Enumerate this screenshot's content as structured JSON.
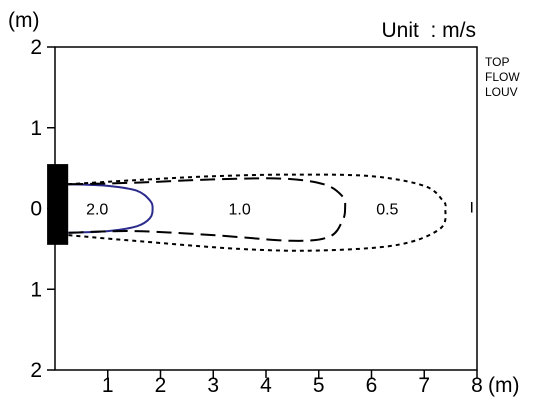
{
  "chart_data": {
    "type": "line",
    "title": "",
    "unit_label": "Unit  : m/s",
    "side_note": [
      "TOP",
      "FLOW",
      "LOUV"
    ],
    "xlabel": "(m)",
    "ylabel": "(m)",
    "xlim": [
      0,
      8
    ],
    "ylim": [
      -2,
      2
    ],
    "x_ticks": [
      {
        "v": 1,
        "label": "1"
      },
      {
        "v": 2,
        "label": "2"
      },
      {
        "v": 3,
        "label": "3"
      },
      {
        "v": 4,
        "label": "4"
      },
      {
        "v": 5,
        "label": "5"
      },
      {
        "v": 6,
        "label": "6"
      },
      {
        "v": 7,
        "label": "7"
      },
      {
        "v": 8,
        "label": "8"
      }
    ],
    "y_ticks": [
      {
        "v": 2,
        "label": "2"
      },
      {
        "v": 1,
        "label": "1"
      },
      {
        "v": 0,
        "label": "0"
      },
      {
        "v": -1,
        "label": "1"
      },
      {
        "v": -2,
        "label": "2"
      }
    ],
    "grid": false,
    "outlet": {
      "x": [
        -0.15,
        0.25
      ],
      "y": [
        -0.45,
        0.55
      ],
      "color": "#000000"
    },
    "series": [
      {
        "label": "2.0",
        "label_at": [
          0.8,
          0.0
        ],
        "color": "#2b2b8c",
        "dash": "solid",
        "points": [
          [
            0.25,
            0.3
          ],
          [
            1.0,
            0.28
          ],
          [
            1.55,
            0.22
          ],
          [
            1.8,
            0.1
          ],
          [
            1.85,
            0.0
          ],
          [
            1.8,
            -0.12
          ],
          [
            1.55,
            -0.22
          ],
          [
            1.0,
            -0.28
          ],
          [
            0.25,
            -0.3
          ]
        ]
      },
      {
        "label": "1.0",
        "label_at": [
          3.5,
          0.0
        ],
        "color": "#000000",
        "dash": "long",
        "points": [
          [
            0.25,
            0.3
          ],
          [
            1.5,
            0.32
          ],
          [
            3.0,
            0.36
          ],
          [
            4.3,
            0.37
          ],
          [
            5.1,
            0.3
          ],
          [
            5.45,
            0.15
          ],
          [
            5.5,
            0.0
          ],
          [
            5.45,
            -0.15
          ],
          [
            5.2,
            -0.35
          ],
          [
            4.5,
            -0.4
          ],
          [
            3.0,
            -0.33
          ],
          [
            1.5,
            -0.28
          ],
          [
            0.25,
            -0.3
          ]
        ]
      },
      {
        "label": "0.5",
        "label_at": [
          6.3,
          0.0
        ],
        "color": "#000000",
        "dash": "short",
        "points": [
          [
            0.25,
            0.3
          ],
          [
            1.5,
            0.35
          ],
          [
            3.0,
            0.4
          ],
          [
            4.5,
            0.42
          ],
          [
            6.0,
            0.4
          ],
          [
            7.0,
            0.28
          ],
          [
            7.35,
            0.1
          ],
          [
            7.4,
            0.0
          ],
          [
            7.3,
            -0.25
          ],
          [
            6.5,
            -0.45
          ],
          [
            5.0,
            -0.52
          ],
          [
            3.5,
            -0.5
          ],
          [
            1.5,
            -0.4
          ],
          [
            0.25,
            -0.33
          ]
        ]
      }
    ],
    "stray_mark": {
      "x": [
        7.9,
        7.9
      ],
      "y": [
        -0.05,
        0.08
      ]
    }
  }
}
